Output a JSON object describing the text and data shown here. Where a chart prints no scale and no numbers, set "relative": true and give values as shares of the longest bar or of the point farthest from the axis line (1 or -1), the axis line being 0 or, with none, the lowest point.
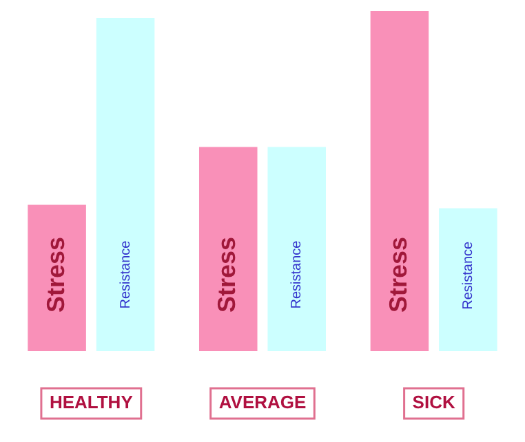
{
  "chart_data": {
    "type": "bar",
    "relative": true,
    "categories": [
      "HEALTHY",
      "AVERAGE",
      "SICK"
    ],
    "series": [
      {
        "name": "Stress",
        "color": "#f990b8",
        "values": [
          0.43,
          0.6,
          1
        ]
      },
      {
        "name": "Resistance",
        "color": "#ccffff",
        "values": [
          0.98,
          0.6,
          0.42
        ]
      }
    ],
    "legend": false
  }
}
